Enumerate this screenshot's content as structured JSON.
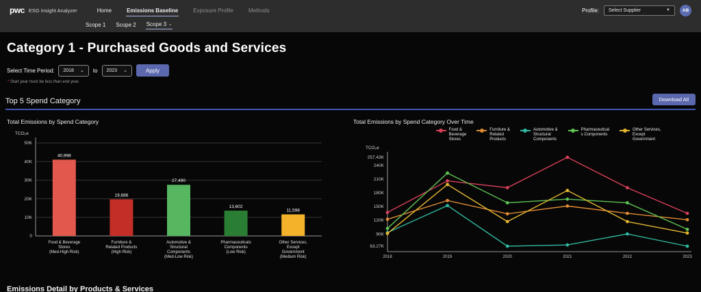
{
  "header": {
    "brand": "pwc",
    "app_title": "ESG Insight Analyzer",
    "nav": [
      {
        "label": "Home",
        "state": "normal"
      },
      {
        "label": "Emissions Baseline",
        "state": "active"
      },
      {
        "label": "Exposure Profile",
        "state": "disabled"
      },
      {
        "label": "Methods",
        "state": "disabled"
      }
    ],
    "subnav": [
      {
        "label": "Scope 1",
        "active": false
      },
      {
        "label": "Scope 2",
        "active": false
      },
      {
        "label": "Scope 3",
        "active": true
      }
    ],
    "profile_label": "Profile:",
    "profile_value": "Select Supplier",
    "avatar_initials": "AB"
  },
  "page": {
    "title": "Category 1 - Purchased Goods and Services",
    "time_period": {
      "label": "Select Time Period:",
      "start_year": "2018",
      "connector": "to",
      "end_year": "2023",
      "apply_label": "Apply",
      "helper_mark": "*",
      "helper_text": "Start year must be less than end year."
    },
    "section_title": "Top 5 Spend Category",
    "download_all_label": "Download All",
    "bottom_section_title": "Emissions Detail by Products & Services"
  },
  "colors": {
    "accent_button": "#5b68ae",
    "section_underline": "#4356b4",
    "header_bg": "#2d2d2d",
    "page_bg": "#070707"
  },
  "chart_data": [
    {
      "type": "bar",
      "title": "Total Emissions by Spend Category",
      "ylabel": "TCO₂e",
      "ylim": [
        0,
        50000
      ],
      "y_ticks": [
        "50K",
        "40K",
        "30K",
        "20K",
        "10K",
        "0"
      ],
      "y_tick_values": [
        50000,
        40000,
        30000,
        20000,
        10000,
        0
      ],
      "grid": true,
      "categories": [
        [
          "Food & Beverage",
          "Stores",
          "(Med-High Risk)"
        ],
        [
          "Furniture &",
          "Related Products",
          "(High Risk)"
        ],
        [
          "Automotive &",
          "Structural",
          "Components",
          "(Med-Low Risk)"
        ],
        [
          "Pharmaceuticals",
          "Components",
          "(Low Risk)"
        ],
        [
          "Other Services,",
          "Except",
          "Government",
          "(Medium Risk)"
        ]
      ],
      "values": [
        40998,
        19686,
        27490,
        13602,
        11598
      ],
      "value_labels": [
        "40,998",
        "19,686",
        "27,490",
        "13,602",
        "11,598"
      ],
      "bar_colors": [
        "#e2584d",
        "#c32e27",
        "#57b660",
        "#2a7e33",
        "#f3b229"
      ]
    },
    {
      "type": "line",
      "title": "Total Emissions by Spend Category Over Time",
      "ylabel": "TCO₂e",
      "ylim": [
        63270,
        257430
      ],
      "y_ticks": [
        "257.43K",
        "240K",
        "210K",
        "180K",
        "150K",
        "120K",
        "90K",
        "63.27K"
      ],
      "y_tick_values": [
        257430,
        240000,
        210000,
        180000,
        150000,
        120000,
        90000,
        63270
      ],
      "x": [
        "2018",
        "2019",
        "2020",
        "2021",
        "2022",
        "2023"
      ],
      "grid": false,
      "legend_position": "top",
      "series": [
        {
          "name": "Food & Beverage Stores",
          "label_lines": [
            "Food &",
            "Beverage",
            "Stores"
          ],
          "color": "#d8405a",
          "values": [
            137000,
            206000,
            191000,
            257430,
            191000,
            135000
          ]
        },
        {
          "name": "Furniture & Related Products",
          "label_lines": [
            "Furniture &",
            "Related",
            "Products"
          ],
          "color": "#e08b33",
          "values": [
            122000,
            163000,
            134000,
            151000,
            135000,
            121000
          ]
        },
        {
          "name": "Automotive & Structural Components",
          "label_lines": [
            "Automotive &",
            "Structural",
            "Components"
          ],
          "color": "#31b8a0",
          "values": [
            93000,
            152000,
            63270,
            66000,
            90000,
            63270
          ]
        },
        {
          "name": "Pharmaceutical s Components",
          "label_lines": [
            "Pharmaceutical",
            "s Components"
          ],
          "color": "#5fc454",
          "values": [
            102000,
            223000,
            158000,
            166000,
            158000,
            100000
          ]
        },
        {
          "name": "Other Services, Except Government",
          "label_lines": [
            "Other Services,",
            "Except",
            "Government"
          ],
          "color": "#e3b62f",
          "values": [
            91000,
            198000,
            117000,
            185000,
            117000,
            92000
          ]
        }
      ]
    }
  ]
}
